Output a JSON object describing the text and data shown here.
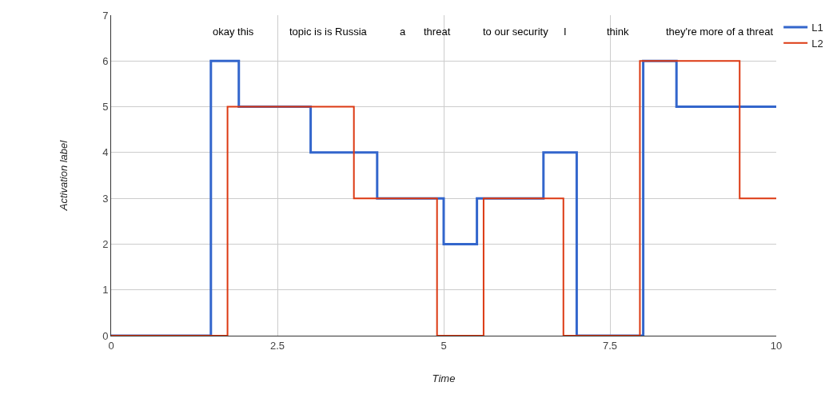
{
  "chart_data": {
    "type": "step",
    "xlabel": "Time",
    "ylabel": "Activation label",
    "series": [
      {
        "name": "L1",
        "color": "#3366cc",
        "x": [
          0,
          1.5,
          1.92,
          3,
          4,
          5,
          5.5,
          6.5,
          7,
          8,
          8.5,
          10
        ],
        "values": [
          0,
          6,
          5,
          4,
          3,
          2,
          3,
          4,
          0,
          6,
          5,
          5
        ]
      },
      {
        "name": "L2",
        "color": "#dc3912",
        "x": [
          0,
          1.75,
          3.65,
          4.9,
          5.6,
          6.8,
          7.95,
          9.45,
          10
        ],
        "values": [
          0,
          5,
          3,
          0,
          3,
          0,
          6,
          3,
          3
        ]
      }
    ],
    "annotations": [
      "okay this",
      "topic is is Russia",
      "a",
      "threat",
      "to our security",
      "I",
      "think",
      "they're more of a threat"
    ],
    "xlim": [
      0,
      10
    ],
    "xticks": [
      0,
      2.5,
      5,
      7.5,
      10
    ],
    "ylim": [
      0,
      7
    ],
    "yticks": [
      0,
      1,
      2,
      3,
      4,
      5,
      6,
      7
    ],
    "grid": true,
    "legend": "top right"
  }
}
